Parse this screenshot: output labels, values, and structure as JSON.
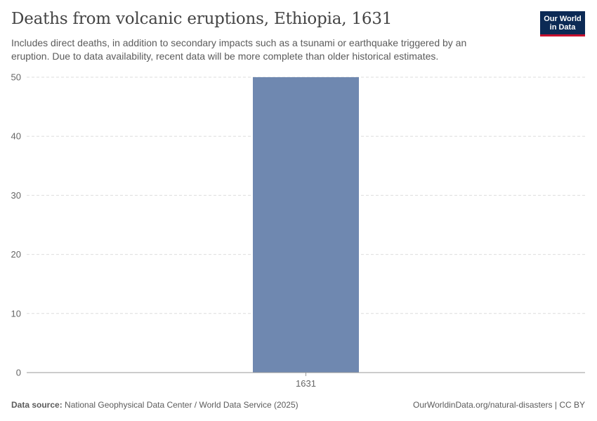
{
  "header": {
    "title": "Deaths from volcanic eruptions, Ethiopia, 1631",
    "subtitle": "Includes direct deaths, in addition to secondary impacts such as a tsunami or earthquake triggered by an eruption. Due to data availability, recent data will be more complete than older historical estimates.",
    "logo_line1": "Our World",
    "logo_line2": "in Data"
  },
  "footer": {
    "source_label": "Data source:",
    "source_text": "National Geophysical Data Center / World Data Service (2025)",
    "url_text": "OurWorldinData.org/natural-disasters | CC BY"
  },
  "colors": {
    "bar": "#6f88b0",
    "grid": "#dddddd",
    "axis": "#999999",
    "logo_bg": "#0c2a55",
    "logo_accent": "#c8102e"
  },
  "chart_data": {
    "type": "bar",
    "title": "Deaths from volcanic eruptions, Ethiopia, 1631",
    "xlabel": "",
    "ylabel": "",
    "categories": [
      "1631"
    ],
    "values": [
      50
    ],
    "ylim": [
      0,
      50
    ],
    "yticks": [
      0,
      10,
      20,
      30,
      40,
      50
    ],
    "grid": true,
    "legend": "none"
  }
}
